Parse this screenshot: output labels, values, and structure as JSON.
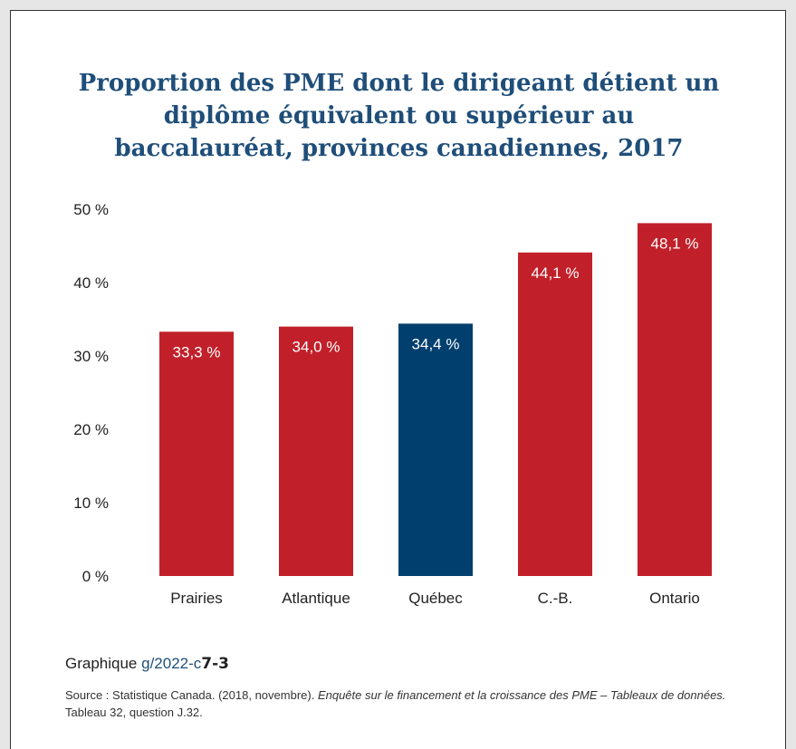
{
  "colors": {
    "accent_red": "#c1202a",
    "accent_blue": "#003f6e",
    "title_blue": "#1f4e79",
    "label_on_bar": "#ffffff"
  },
  "title_lines": [
    "Proportion des PME dont le dirigeant détient un",
    "diplôme équivalent ou supérieur au",
    "baccalauréat, provinces canadiennes, 2017"
  ],
  "chart_data": {
    "type": "bar",
    "title": "Proportion des PME dont le dirigeant détient un diplôme équivalent ou supérieur au baccalauréat, provinces canadiennes, 2017",
    "categories": [
      "Prairies",
      "Atlantique",
      "Québec",
      "C.-B.",
      "Ontario"
    ],
    "values": [
      33.3,
      34.0,
      34.4,
      44.1,
      48.1
    ],
    "data_labels": [
      "33,3 %",
      "34,0 %",
      "34,4 %",
      "44,1 %",
      "48,1 %"
    ],
    "highlight_category": "Québec",
    "ylim": [
      0,
      50
    ],
    "yticks": [
      0,
      10,
      20,
      30,
      40,
      50
    ],
    "ytick_labels": [
      "0 %",
      "10 %",
      "20 %",
      "30 %",
      "40 %",
      "50 %"
    ],
    "xlabel": "",
    "ylabel": "",
    "grid": false,
    "legend": "none"
  },
  "caption": {
    "prefix": "Graphique ",
    "code_a": "g/2022-c",
    "code_b": "7-3"
  },
  "source": {
    "text_1": "Source : Statistique Canada. (2018, novembre). ",
    "italic": "Enquête sur le financement et la croissance des PME – Tableaux de données.",
    "text_2": " Tableau 32, question J.32."
  }
}
